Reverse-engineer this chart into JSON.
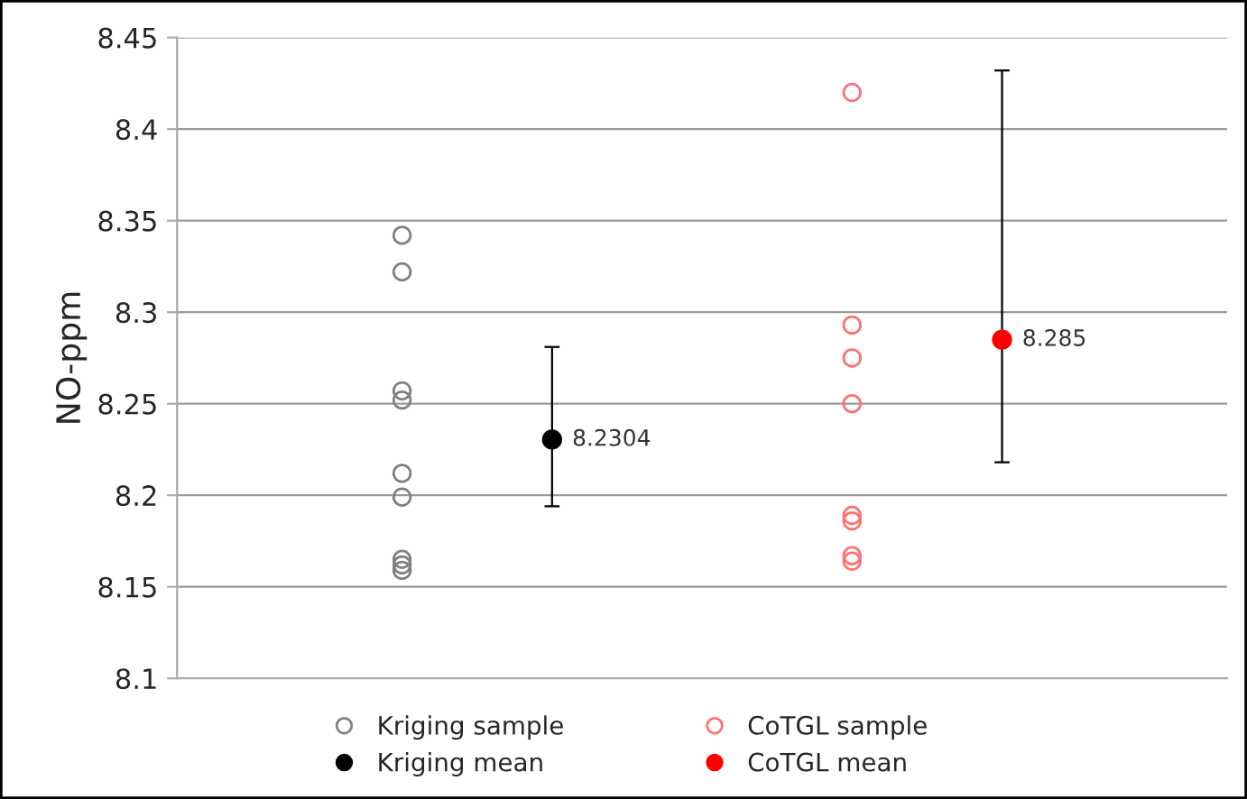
{
  "chart_data": {
    "type": "scatter",
    "ylabel": "NO-ppm",
    "categories": [
      null,
      null,
      null,
      null,
      null,
      null,
      null
    ],
    "ylim": [
      8.1,
      8.45
    ],
    "yticks": [
      8.1,
      8.15,
      8.2,
      8.25,
      8.3,
      8.35,
      8.4,
      8.45
    ],
    "grid": "y",
    "legend": "bottom",
    "tick_labels": "y",
    "marker": "circle",
    "series": [
      {
        "name": "Kriging sample",
        "color": "#808080",
        "values": [
          null,
          8.342,
          null,
          null,
          null,
          null,
          null
        ]
      },
      {
        "name": "Kriging mean",
        "color": "#000000",
        "values": [
          null,
          null,
          8.2304,
          null,
          null,
          null,
          null
        ],
        "errors": [
          null,
          null,
          [
            8.194,
            8.281
          ],
          null,
          null,
          null,
          null
        ],
        "value_labels": [
          null,
          null,
          "8.2304",
          null,
          null,
          null,
          null
        ]
      },
      {
        "name": "CoTGL sample",
        "color": "#ff7070",
        "values": [
          null,
          null,
          null,
          null,
          8.42,
          null,
          null
        ]
      },
      {
        "name": "CoTGL mean",
        "color": "#ff0000",
        "values": [
          null,
          null,
          null,
          null,
          null,
          8.285,
          null
        ],
        "errors": [
          null,
          null,
          null,
          null,
          null,
          [
            8.218,
            8.432
          ],
          null
        ],
        "value_labels": [
          null,
          null,
          null,
          null,
          null,
          "8.285",
          null
        ]
      },
      {
        "color": "#808080",
        "values": [
          null,
          8.322,
          null,
          null,
          null,
          null,
          null
        ]
      },
      {
        "color": "#808080",
        "values": [
          null,
          8.257,
          null,
          null,
          null,
          null,
          null
        ]
      },
      {
        "color": "#808080",
        "values": [
          null,
          8.252,
          null,
          null,
          null,
          null,
          null
        ]
      },
      {
        "color": "#808080",
        "values": [
          null,
          8.212,
          null,
          null,
          null,
          null,
          null
        ]
      },
      {
        "color": "#808080",
        "values": [
          null,
          8.199,
          null,
          null,
          null,
          null,
          null
        ]
      },
      {
        "color": "#808080",
        "values": [
          null,
          8.165,
          null,
          null,
          null,
          null,
          null
        ]
      },
      {
        "color": "#808080",
        "values": [
          null,
          8.162,
          null,
          null,
          null,
          null,
          null
        ]
      },
      {
        "color": "#808080",
        "values": [
          null,
          8.159,
          null,
          null,
          null,
          null,
          null
        ]
      },
      {
        "color": "#ff7070",
        "values": [
          null,
          null,
          null,
          null,
          8.293,
          null,
          null
        ]
      },
      {
        "color": "#ff7070",
        "values": [
          null,
          null,
          null,
          null,
          8.275,
          null,
          null
        ]
      },
      {
        "color": "#ff7070",
        "values": [
          null,
          null,
          null,
          null,
          8.25,
          null,
          null
        ]
      },
      {
        "color": "#ff7070",
        "values": [
          null,
          null,
          null,
          null,
          8.189,
          null,
          null
        ]
      },
      {
        "color": "#ff7070",
        "values": [
          null,
          null,
          null,
          null,
          8.186,
          null,
          null
        ]
      },
      {
        "color": "#ff7070",
        "values": [
          null,
          null,
          null,
          null,
          8.167,
          null,
          null
        ]
      },
      {
        "color": "#ff7070",
        "values": [
          null,
          null,
          null,
          null,
          8.164,
          null,
          null
        ]
      }
    ]
  }
}
